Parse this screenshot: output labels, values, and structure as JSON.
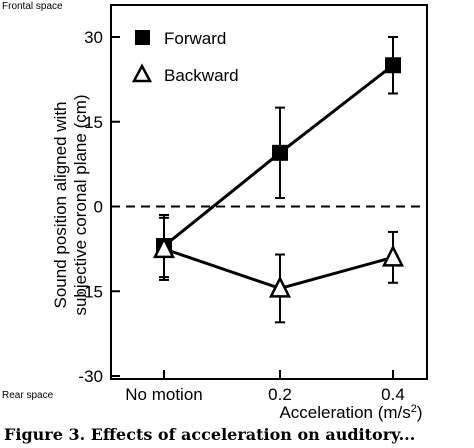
{
  "chart_data": {
    "type": "line",
    "categories": [
      "No motion",
      "0.2",
      "0.4"
    ],
    "xlabel": "Acceleration (m/s",
    "xlabel_sup": "2",
    "xlabel_close": ")",
    "ylabel_line1": "Sound position aligned with",
    "ylabel_line2": "subjective coronal plane (cm)",
    "ylim": [
      -30,
      30
    ],
    "yticks": [
      "30",
      "15",
      "0",
      "-15",
      "-30"
    ],
    "ytick_values": [
      30,
      15,
      0,
      -15,
      -30
    ],
    "top_annotation": "Frontal space",
    "bottom_annotation": "Rear space",
    "reference_line": 0,
    "legend_position": "top-left",
    "series": [
      {
        "name": "Forward",
        "marker": "filled-square",
        "values": [
          -7,
          9.5,
          25
        ],
        "errors": [
          5.5,
          8,
          5
        ]
      },
      {
        "name": "Backward",
        "marker": "open-triangle",
        "values": [
          -7.5,
          -14.5,
          -9
        ],
        "errors": [
          5.5,
          6,
          4.5
        ]
      }
    ]
  },
  "caption": "Figure 3. Effects of acceleration on auditory..."
}
